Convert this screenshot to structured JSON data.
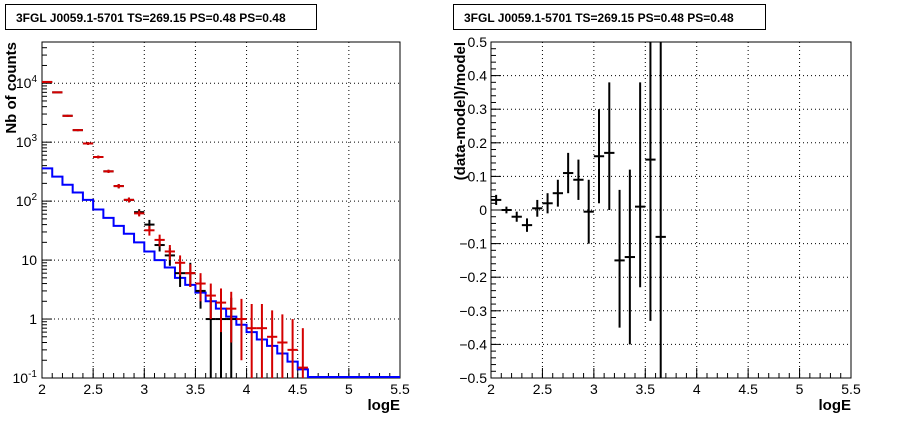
{
  "chart_data": [
    {
      "type": "line",
      "title": "3FGL J0059.1-5701 TS=269.15 PS=0.48 PS=0.48",
      "xlabel": "logE",
      "ylabel": "Nb of counts",
      "xlim": [
        2,
        5.5
      ],
      "ylim": [
        0.1,
        50000
      ],
      "yscale": "log",
      "grid": true,
      "x_ticks": [
        "2",
        "2.5",
        "3",
        "3.5",
        "4",
        "4.5",
        "5",
        "5.5"
      ],
      "y_ticks": [
        "10^-1",
        "1",
        "10",
        "10^2",
        "10^3",
        "10^4"
      ],
      "bin_edges": [
        2.0,
        2.1,
        2.2,
        2.3,
        2.4,
        2.5,
        2.6,
        2.7,
        2.8,
        2.9,
        3.0,
        3.1,
        3.2,
        3.3,
        3.4,
        3.5,
        3.6,
        3.7,
        3.8,
        3.9,
        4.0,
        4.1,
        4.2,
        4.3,
        4.4,
        4.5,
        4.6,
        4.7,
        4.8,
        4.9,
        5.0,
        5.1,
        5.2,
        5.3,
        5.4,
        5.5
      ],
      "series": [
        {
          "color": "#0000ff",
          "style": "histogram",
          "values": [
            360,
            260,
            190,
            140,
            105,
            72,
            52,
            38,
            28,
            20,
            14,
            10,
            7.5,
            5.0,
            3.8,
            2.8,
            2.0,
            1.5,
            1.1,
            0.8,
            0.6,
            0.45,
            0.35,
            0.26,
            0.19,
            0.14,
            0.1,
            0.1,
            0.1,
            0.1,
            0.1,
            0.1,
            0.1,
            0.1,
            0.1
          ]
        },
        {
          "color": "#000000",
          "style": "points",
          "x": [
            2.05,
            2.15,
            2.25,
            2.35,
            2.45,
            2.55,
            2.65,
            2.75,
            2.85,
            2.95,
            3.05,
            3.15,
            3.25,
            3.35,
            3.45,
            3.55,
            3.65,
            3.75,
            3.85
          ],
          "y": [
            10500,
            7000,
            2800,
            1600,
            950,
            560,
            320,
            180,
            105,
            65,
            40,
            18,
            12,
            6,
            6,
            3,
            1,
            1,
            1
          ],
          "ylow": [
            10300,
            6850,
            2700,
            1540,
            900,
            530,
            300,
            165,
            95,
            57,
            33,
            14,
            8,
            3.5,
            3.5,
            1.5,
            0.1,
            0.1,
            0.1
          ],
          "yhigh": [
            10700,
            7150,
            2900,
            1660,
            1000,
            590,
            340,
            195,
            115,
            73,
            48,
            23,
            16,
            9,
            9,
            5,
            2.3,
            2.3,
            2.3
          ]
        },
        {
          "color": "#d40000",
          "style": "points",
          "x": [
            2.05,
            2.15,
            2.25,
            2.35,
            2.45,
            2.55,
            2.65,
            2.75,
            2.85,
            2.95,
            3.05,
            3.15,
            3.25,
            3.35,
            3.45,
            3.55,
            3.65,
            3.75,
            3.85,
            3.95,
            4.05,
            4.15,
            4.25,
            4.35,
            4.45,
            4.55
          ],
          "y": [
            10500,
            7000,
            2800,
            1600,
            950,
            560,
            320,
            180,
            105,
            62,
            32,
            22,
            14,
            9,
            6,
            4,
            2.5,
            1.9,
            1.5,
            1.0,
            0.7,
            0.7,
            0.5,
            0.4,
            0.3,
            0.15
          ],
          "ylow": [
            10300,
            6850,
            2700,
            1540,
            900,
            530,
            300,
            165,
            95,
            55,
            26,
            17,
            10,
            5.5,
            3.5,
            2,
            1,
            0.6,
            0.4,
            0.2,
            0.1,
            0.1,
            0.1,
            0.1,
            0.1,
            0.1
          ],
          "yhigh": [
            10700,
            7150,
            2900,
            1660,
            1000,
            590,
            340,
            195,
            115,
            69,
            38,
            27,
            18,
            12,
            8.5,
            6,
            4,
            3.3,
            2.9,
            2.2,
            1.8,
            1.8,
            1.4,
            1.2,
            1.0,
            0.7
          ]
        }
      ]
    },
    {
      "type": "scatter",
      "title": "3FGL J0059.1-5701 TS=269.15 PS=0.48 PS=0.48",
      "xlabel": "logE",
      "ylabel": "(data-model)/model",
      "xlim": [
        2,
        5.5
      ],
      "ylim": [
        -0.5,
        0.5
      ],
      "grid": true,
      "x_ticks": [
        "2",
        "2.5",
        "3",
        "3.5",
        "4",
        "4.5",
        "5",
        "5.5"
      ],
      "y_ticks": [
        "−0.5",
        "−0.4",
        "−0.3",
        "−0.2",
        "−0.1",
        "0",
        "0.1",
        "0.2",
        "0.3",
        "0.4",
        "0.5"
      ],
      "y_tick_values": [
        -0.5,
        -0.4,
        -0.3,
        -0.2,
        -0.1,
        0,
        0.1,
        0.2,
        0.3,
        0.4,
        0.5
      ],
      "series": [
        {
          "color": "#000000",
          "x": [
            2.05,
            2.15,
            2.25,
            2.35,
            2.45,
            2.55,
            2.65,
            2.75,
            2.85,
            2.95,
            3.05,
            3.15,
            3.25,
            3.35,
            3.45,
            3.55,
            3.65
          ],
          "y": [
            0.03,
            0.0,
            -0.02,
            -0.045,
            0.005,
            0.02,
            0.05,
            0.11,
            0.09,
            -0.005,
            0.16,
            0.17,
            -0.15,
            -0.14,
            0.01,
            0.15,
            -0.08
          ],
          "ylow": [
            0.015,
            -0.01,
            -0.035,
            -0.065,
            -0.02,
            -0.01,
            0.01,
            0.05,
            0.03,
            -0.1,
            0.02,
            0.0,
            -0.35,
            -0.4,
            -0.23,
            -0.33,
            -0.5
          ],
          "yhigh": [
            0.045,
            0.01,
            -0.005,
            -0.025,
            0.03,
            0.05,
            0.09,
            0.17,
            0.15,
            0.09,
            0.3,
            0.38,
            0.06,
            0.12,
            0.38,
            0.5,
            0.5
          ]
        }
      ]
    }
  ]
}
